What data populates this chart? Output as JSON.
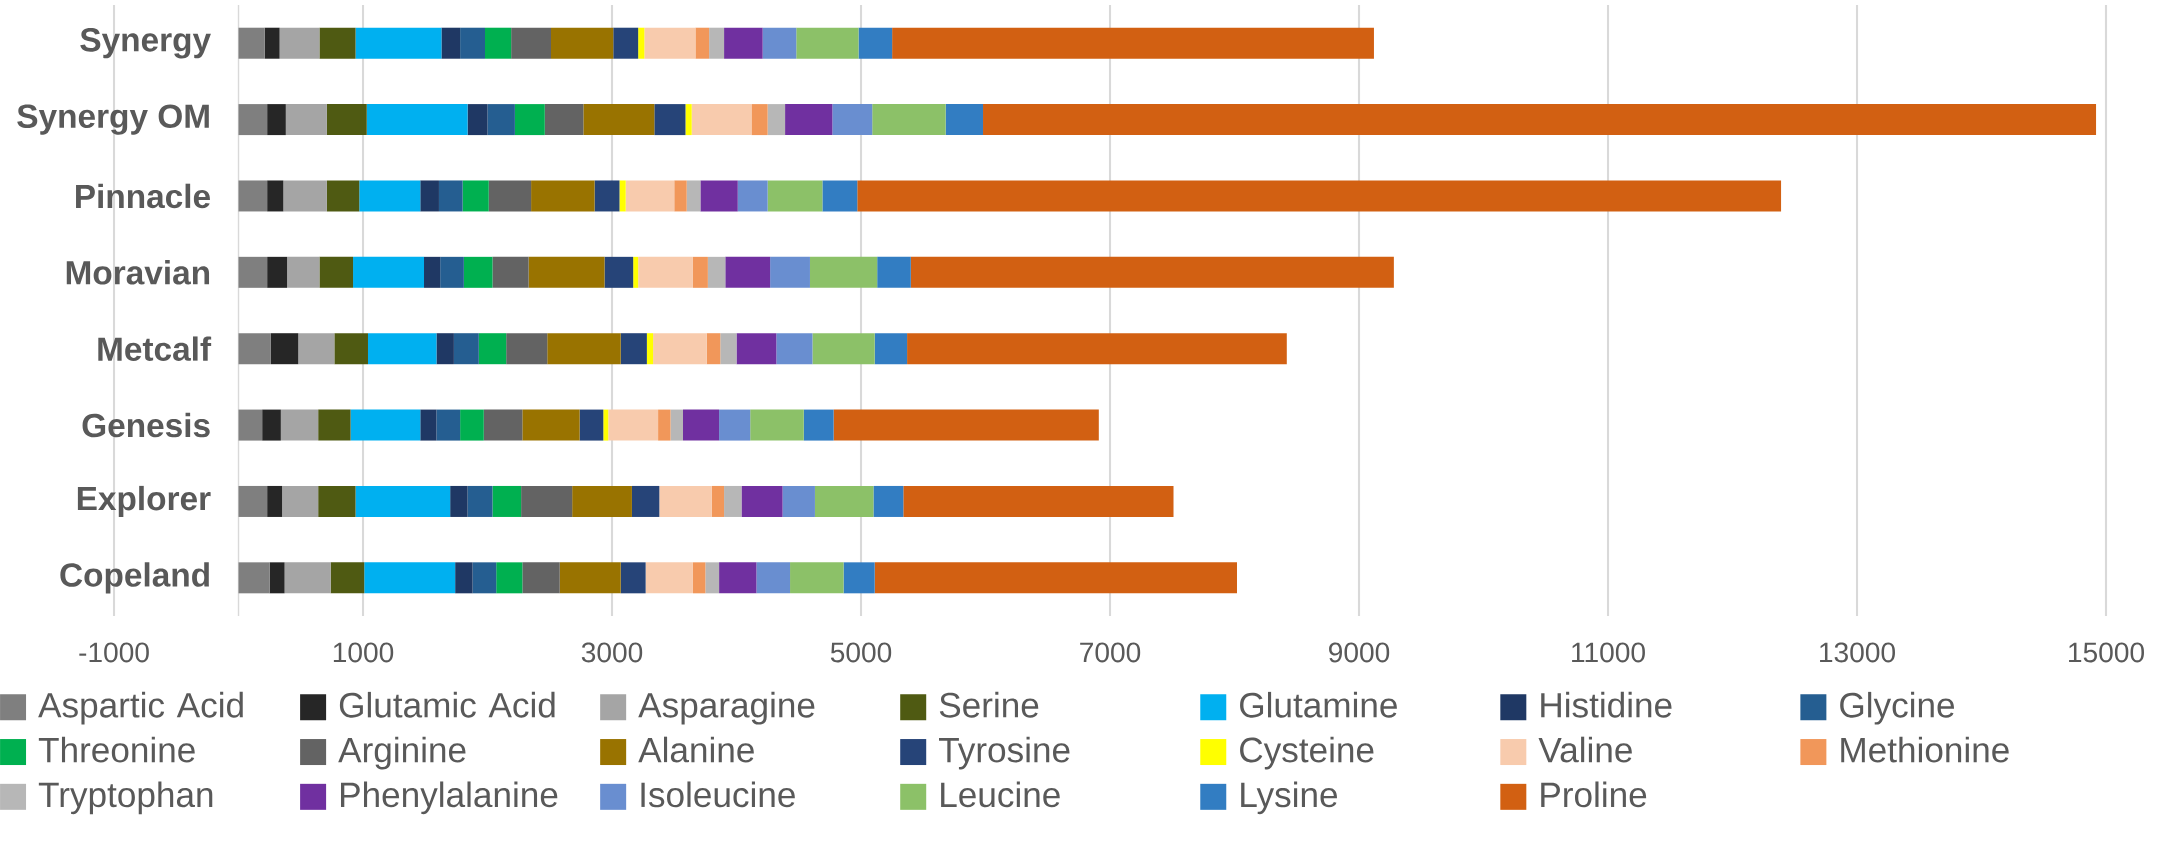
{
  "chart_data": {
    "type": "bar",
    "orientation": "horizontal",
    "stacked": true,
    "categories": [
      "Synergy",
      "Synergy OM",
      "Pinnacle",
      "Moravian",
      "Metcalf",
      "Genesis",
      "Explorer",
      "Copeland"
    ],
    "series": [
      {
        "name": "Aspartic Acid",
        "color": "#7f7f7f",
        "values": [
          210,
          230,
          230,
          230,
          260,
          190,
          230,
          250
        ]
      },
      {
        "name": "Glutamic Acid",
        "color": "#262626",
        "values": [
          120,
          150,
          130,
          160,
          220,
          150,
          120,
          120
        ]
      },
      {
        "name": "Asparagine",
        "color": "#a5a5a5",
        "values": [
          320,
          330,
          350,
          260,
          290,
          300,
          290,
          370
        ]
      },
      {
        "name": "Serine",
        "color": "#4f5a12",
        "values": [
          290,
          320,
          260,
          270,
          270,
          260,
          300,
          270
        ]
      },
      {
        "name": "Glutamine",
        "color": "#00b0f0",
        "values": [
          690,
          810,
          490,
          570,
          550,
          560,
          760,
          730
        ]
      },
      {
        "name": "Histidine",
        "color": "#1f3864",
        "values": [
          150,
          160,
          150,
          130,
          140,
          130,
          140,
          140
        ]
      },
      {
        "name": "Glycine",
        "color": "#255e91",
        "values": [
          200,
          220,
          190,
          190,
          200,
          190,
          200,
          190
        ]
      },
      {
        "name": "Threonine",
        "color": "#00b050",
        "values": [
          210,
          240,
          210,
          230,
          220,
          190,
          230,
          210
        ]
      },
      {
        "name": "Arginine",
        "color": "#636363",
        "values": [
          320,
          310,
          340,
          290,
          330,
          310,
          410,
          300
        ]
      },
      {
        "name": "Alanine",
        "color": "#997300",
        "values": [
          500,
          570,
          510,
          610,
          590,
          460,
          480,
          490
        ]
      },
      {
        "name": "Tyrosine",
        "color": "#264478",
        "values": [
          200,
          250,
          200,
          230,
          210,
          190,
          220,
          200
        ]
      },
      {
        "name": "Cysteine",
        "color": "#ffff00",
        "values": [
          50,
          50,
          50,
          40,
          50,
          40,
          0,
          0
        ]
      },
      {
        "name": "Valine",
        "color": "#f8cbad",
        "values": [
          410,
          480,
          390,
          440,
          430,
          400,
          420,
          380
        ]
      },
      {
        "name": "Methionine",
        "color": "#f1975a",
        "values": [
          110,
          130,
          100,
          120,
          110,
          100,
          100,
          100
        ]
      },
      {
        "name": "Tryptophan",
        "color": "#b7b7b7",
        "values": [
          120,
          140,
          110,
          140,
          130,
          100,
          140,
          110
        ]
      },
      {
        "name": "Phenylalanine",
        "color": "#7030a0",
        "values": [
          310,
          380,
          300,
          360,
          320,
          290,
          330,
          300
        ]
      },
      {
        "name": "Isoleucine",
        "color": "#698ed0",
        "values": [
          270,
          320,
          240,
          320,
          290,
          250,
          260,
          270
        ]
      },
      {
        "name": "Leucine",
        "color": "#8cc168",
        "values": [
          500,
          590,
          440,
          540,
          500,
          430,
          470,
          430
        ]
      },
      {
        "name": "Lysine",
        "color": "#327dc2",
        "values": [
          270,
          300,
          280,
          270,
          260,
          240,
          240,
          250
        ]
      },
      {
        "name": "Proline",
        "color": "#d26012",
        "values": [
          3870,
          8940,
          7420,
          3880,
          3050,
          2130,
          2170,
          2910
        ]
      }
    ],
    "xlim": [
      -1000,
      15000
    ],
    "xticks": [
      -1000,
      1000,
      3000,
      5000,
      7000,
      9000,
      11000,
      13000,
      15000
    ],
    "grid": "x",
    "legend": "bottom"
  }
}
